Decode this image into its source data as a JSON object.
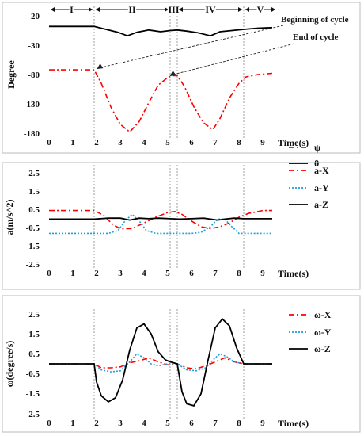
{
  "chart_data": [
    {
      "type": "line",
      "ylabel": "Degree",
      "xlabel": "Time(s)",
      "xlim": [
        0,
        9.6
      ],
      "ylim": [
        -180,
        20
      ],
      "xticks": [
        "0",
        "1",
        "2",
        "3",
        "4",
        "5",
        "6",
        "7",
        "8",
        "9"
      ],
      "yticks": [
        "20",
        "-30",
        "-80",
        "-130",
        "-180"
      ],
      "phases": [
        {
          "label": "I",
          "start": 0,
          "end": 1.9
        },
        {
          "label": "II",
          "start": 1.9,
          "end": 5.1
        },
        {
          "label": "III",
          "start": 5.1,
          "end": 5.4
        },
        {
          "label": "IV",
          "start": 5.4,
          "end": 8.2
        },
        {
          "label": "V",
          "start": 8.2,
          "end": 9.6
        }
      ],
      "vlines": [
        1.9,
        5.1,
        5.4,
        8.2
      ],
      "annotations": [
        "Beginning of cycle",
        "End of cycle"
      ],
      "series": [
        {
          "name": "ψ",
          "color": "#ff0000",
          "dash": "dashdot",
          "x": [
            0,
            1.9,
            2.2,
            2.6,
            3.0,
            3.4,
            3.8,
            4.2,
            4.6,
            5.0,
            5.2,
            5.4,
            5.7,
            6.1,
            6.5,
            6.9,
            7.2,
            7.6,
            8.0,
            8.3,
            8.8,
            9.4
          ],
          "y": [
            -72,
            -72,
            -95,
            -135,
            -165,
            -178,
            -160,
            -128,
            -98,
            -85,
            -82,
            -82,
            -100,
            -135,
            -162,
            -174,
            -155,
            -120,
            -95,
            -84,
            -80,
            -78
          ]
        },
        {
          "name": "θ",
          "color": "#000000",
          "dash": "solid",
          "x": [
            0,
            1.9,
            2.4,
            2.9,
            3.3,
            3.7,
            4.2,
            4.7,
            5.1,
            5.4,
            5.8,
            6.3,
            6.8,
            7.2,
            7.7,
            8.2,
            8.8,
            9.4
          ],
          "y": [
            2,
            2,
            -3,
            -8,
            -14,
            -8,
            -4,
            -7,
            -5,
            -4,
            -6,
            -9,
            -14,
            -7,
            -5,
            -3,
            -1,
            0
          ]
        }
      ]
    },
    {
      "type": "line",
      "ylabel": "a(m/s^2)",
      "xlabel": "Time(s)",
      "xlim": [
        0,
        9.6
      ],
      "ylim": [
        -2.5,
        2.5
      ],
      "xticks": [
        "0",
        "1",
        "2",
        "3",
        "4",
        "5",
        "6",
        "7",
        "8",
        "9"
      ],
      "yticks": [
        "2.5",
        "1.5",
        "0.5",
        "-0.5",
        "-1.5",
        "-2.5"
      ],
      "vlines": [
        1.9,
        5.1,
        5.4,
        8.2
      ],
      "series": [
        {
          "name": "a-X",
          "color": "#ff0000",
          "dash": "dashdot",
          "x": [
            0,
            1.9,
            2.3,
            2.7,
            3.0,
            3.5,
            4.0,
            4.5,
            5.0,
            5.3,
            5.6,
            6.0,
            6.4,
            6.8,
            7.2,
            7.6,
            8.0,
            8.4,
            9.0,
            9.4
          ],
          "y": [
            0.35,
            0.35,
            0.1,
            -0.4,
            -0.6,
            -0.6,
            -0.3,
            0.0,
            0.25,
            0.3,
            0.15,
            -0.2,
            -0.5,
            -0.6,
            -0.5,
            -0.3,
            0.0,
            0.2,
            0.35,
            0.35
          ]
        },
        {
          "name": "a-Y",
          "color": "#1a9fe0",
          "dash": "dotted",
          "x": [
            0,
            1.9,
            2.5,
            2.9,
            3.2,
            3.5,
            3.8,
            4.1,
            4.5,
            5.0,
            5.5,
            6.0,
            6.4,
            6.8,
            7.1,
            7.4,
            7.7,
            8.0,
            8.5,
            9.4
          ],
          "y": [
            -0.85,
            -0.85,
            -0.85,
            -0.7,
            -0.2,
            0.15,
            -0.2,
            -0.7,
            -0.85,
            -0.85,
            -0.85,
            -0.85,
            -0.8,
            -0.5,
            -0.1,
            -0.1,
            -0.5,
            -0.85,
            -0.85,
            -0.85
          ]
        },
        {
          "name": "a-Z",
          "color": "#000000",
          "dash": "solid",
          "x": [
            0,
            1.9,
            2.5,
            3.0,
            3.4,
            3.8,
            4.2,
            4.6,
            5.1,
            5.5,
            6.0,
            6.5,
            6.8,
            7.1,
            7.4,
            7.8,
            8.2,
            8.8,
            9.4
          ],
          "y": [
            -0.1,
            -0.1,
            -0.05,
            -0.05,
            -0.15,
            -0.05,
            -0.08,
            -0.05,
            -0.08,
            -0.1,
            -0.08,
            -0.05,
            -0.1,
            -0.15,
            -0.1,
            -0.05,
            -0.08,
            -0.08,
            -0.08
          ]
        }
      ]
    },
    {
      "type": "line",
      "ylabel": "ω(degree/s)",
      "xlabel": "Time(s)",
      "xlim": [
        0,
        9.6
      ],
      "ylim": [
        -2.5,
        2.5
      ],
      "xticks": [
        "0",
        "1",
        "2",
        "3",
        "4",
        "5",
        "6",
        "7",
        "8",
        "9"
      ],
      "yticks": [
        "2.5",
        "1.5",
        "0.5",
        "-0.5",
        "-1.5",
        "-2.5"
      ],
      "vlines": [
        1.9,
        5.1,
        5.4,
        8.2
      ],
      "series": [
        {
          "name": "ω-X",
          "color": "#ff0000",
          "dash": "dashdot",
          "x": [
            0,
            1.9,
            2.2,
            2.6,
            3.0,
            3.4,
            3.8,
            4.2,
            4.6,
            5.0,
            5.4,
            5.8,
            6.2,
            6.6,
            7.0,
            7.4,
            7.8,
            8.2,
            8.8,
            9.4
          ],
          "y": [
            0,
            0,
            -0.2,
            -0.2,
            -0.15,
            0.05,
            0.15,
            0.3,
            0.1,
            -0.05,
            0,
            -0.2,
            -0.25,
            -0.1,
            0.1,
            0.3,
            0.1,
            0,
            0,
            0
          ]
        },
        {
          "name": "ω-Y",
          "color": "#1a9fe0",
          "dash": "dotted",
          "x": [
            0,
            1.9,
            2.2,
            2.6,
            3.0,
            3.4,
            3.7,
            4.0,
            4.3,
            4.6,
            5.0,
            5.4,
            5.8,
            6.2,
            6.6,
            7.0,
            7.2,
            7.5,
            7.8,
            8.2,
            8.8,
            9.4
          ],
          "y": [
            0,
            0,
            -0.3,
            -0.4,
            -0.35,
            0.1,
            0.5,
            0.3,
            0.0,
            -0.1,
            0,
            0,
            -0.3,
            -0.35,
            -0.2,
            0.3,
            0.5,
            0.35,
            0.1,
            0,
            0,
            0
          ]
        },
        {
          "name": "ω-Z",
          "color": "#000000",
          "dash": "solid",
          "x": [
            0,
            1.9,
            2.0,
            2.2,
            2.5,
            2.8,
            3.1,
            3.4,
            3.7,
            4.0,
            4.3,
            4.6,
            4.9,
            5.1,
            5.4,
            5.6,
            5.8,
            6.1,
            6.4,
            6.7,
            7.0,
            7.3,
            7.6,
            7.9,
            8.2,
            8.8,
            9.4
          ],
          "y": [
            0,
            0,
            -0.9,
            -1.6,
            -1.9,
            -1.7,
            -0.8,
            0.7,
            1.8,
            2.0,
            1.5,
            0.6,
            0.2,
            0.1,
            0,
            -1.4,
            -2.0,
            -2.1,
            -1.5,
            0.2,
            1.8,
            2.25,
            1.9,
            0.8,
            0,
            0,
            0
          ]
        }
      ]
    }
  ]
}
